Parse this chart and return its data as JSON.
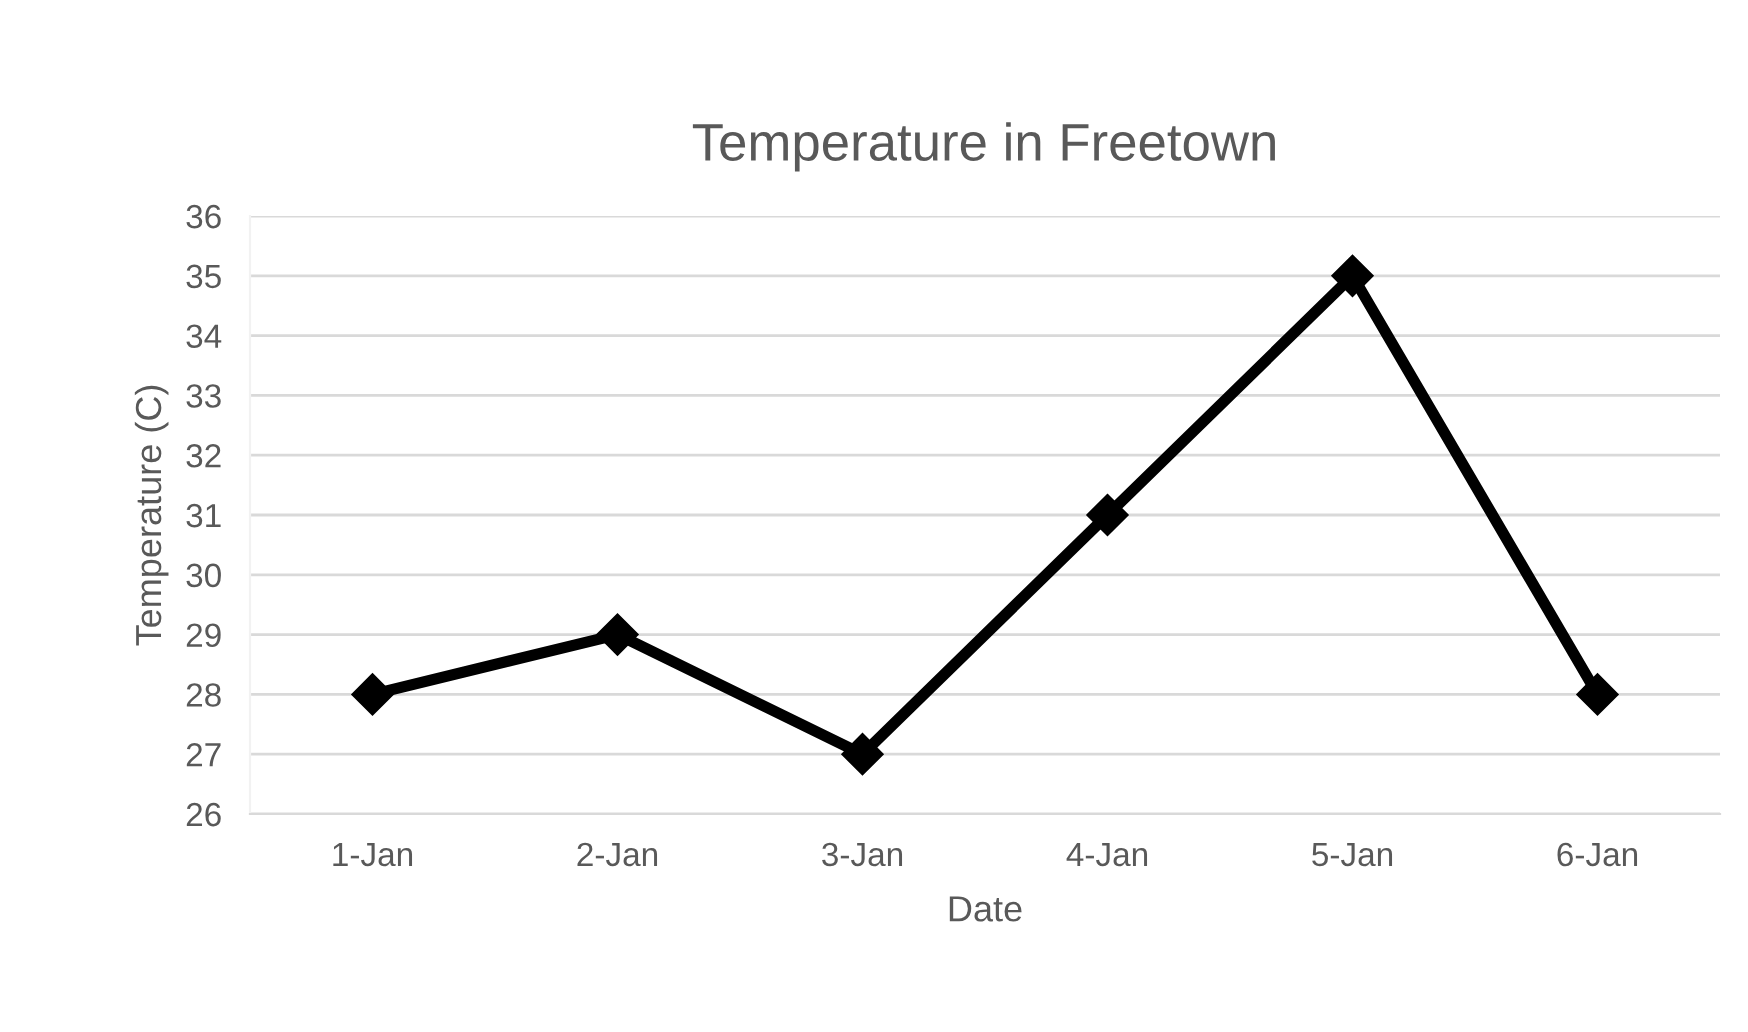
{
  "chart_data": {
    "type": "line",
    "title": "Temperature in Freetown",
    "xlabel": "Date",
    "ylabel": "Temperature (C)",
    "categories": [
      "1-Jan",
      "2-Jan",
      "3-Jan",
      "4-Jan",
      "5-Jan",
      "6-Jan"
    ],
    "series": [
      {
        "color": "#000000",
        "values": [
          28,
          29,
          27,
          31,
          35,
          28
        ]
      }
    ],
    "ylim": [
      26,
      36
    ],
    "yticks": [
      26,
      27,
      28,
      29,
      30,
      31,
      32,
      33,
      34,
      35,
      36
    ],
    "grid": "y",
    "marker": "diamond",
    "line_style": "solid"
  }
}
